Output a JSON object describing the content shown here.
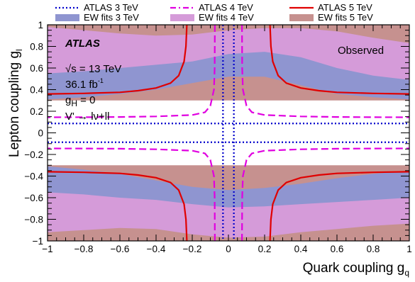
{
  "chart_data": {
    "type": "line",
    "xlabel": "Quark coupling g",
    "xlabel_sub": "q",
    "ylabel": "Lepton coupling g",
    "ylabel_sub": "l",
    "xlim": [
      -1,
      1
    ],
    "ylim": [
      -1,
      1
    ],
    "xticks": [
      -1,
      -0.8,
      -0.6,
      -0.4,
      -0.2,
      0,
      0.2,
      0.4,
      0.6,
      0.8,
      1
    ],
    "xtick_labels": [
      "−1",
      "−0.8",
      "−0.6",
      "−0.4",
      "−0.2",
      "0",
      "0.2",
      "0.4",
      "0.6",
      "0.8",
      "1"
    ],
    "yticks": [
      -1,
      -0.8,
      -0.6,
      -0.4,
      -0.2,
      0,
      0.2,
      0.4,
      0.6,
      0.8,
      1
    ],
    "ytick_labels": [
      "−1",
      "−0.8",
      "−0.6",
      "−0.4",
      "−0.2",
      "0",
      "0.2",
      "0.4",
      "0.6",
      "0.8",
      "1"
    ],
    "grid": false,
    "legend": {
      "placement": "top (above plot, 3 columns)",
      "entries": [
        {
          "label": "ATLAS 3 TeV",
          "kind": "line",
          "color": "#0000cc",
          "style": "dotted"
        },
        {
          "label": "ATLAS 4 TeV",
          "kind": "line",
          "color": "#e000e0",
          "style": "dashed"
        },
        {
          "label": "ATLAS 5 TeV",
          "kind": "line",
          "color": "#e00000",
          "style": "solid"
        },
        {
          "label": "EW fits 3 TeV",
          "kind": "band",
          "color": "#8f95d0"
        },
        {
          "label": "EW fits 4 TeV",
          "kind": "band",
          "color": "#d59bd9"
        },
        {
          "label": "EW fits 5 TeV",
          "kind": "band",
          "color": "#c6918f"
        }
      ]
    },
    "annotations": {
      "atlas": "ATLAS",
      "status": "Observed",
      "energy_prefix": "√s = 13 TeV",
      "lumi_value": "36.1 fb",
      "lumi_sup": "-1",
      "gh_prefix": "g",
      "gh_sub": "H",
      "gh_value": " = 0",
      "process": "V' → lν+ll"
    },
    "background_color": "#c6918f",
    "limit_curves": [
      {
        "name": "ATLAS 3 TeV",
        "color": "#0000cc",
        "style": "dotted",
        "x_vertical": 0.03,
        "y_horizontal": 0.087,
        "description": "four symmetric branches; excluded region outside the curves"
      },
      {
        "name": "ATLAS 4 TeV",
        "color": "#e000e0",
        "style": "dashed",
        "upper_right_branch": [
          [
            0.075,
            1.0
          ],
          [
            0.076,
            0.6
          ],
          [
            0.08,
            0.4
          ],
          [
            0.1,
            0.25
          ],
          [
            0.13,
            0.19
          ],
          [
            0.2,
            0.165
          ],
          [
            0.4,
            0.152
          ],
          [
            0.6,
            0.147
          ],
          [
            0.8,
            0.145
          ],
          [
            1.0,
            0.144
          ]
        ],
        "description": "four symmetric branches, mirror in x and y"
      },
      {
        "name": "ATLAS 5 TeV",
        "color": "#e00000",
        "style": "solid",
        "upper_right_branch": [
          [
            0.23,
            1.0
          ],
          [
            0.235,
            0.8
          ],
          [
            0.245,
            0.66
          ],
          [
            0.275,
            0.53
          ],
          [
            0.32,
            0.46
          ],
          [
            0.4,
            0.415
          ],
          [
            0.5,
            0.39
          ],
          [
            0.6,
            0.375
          ],
          [
            0.8,
            0.365
          ],
          [
            1.0,
            0.36
          ]
        ],
        "description": "four symmetric branches, mirror in x and y"
      }
    ],
    "ew_bands": [
      {
        "name": "EW fits 4 TeV",
        "color": "#d59bd9",
        "upper_lower": [
          [
            -1,
            0.51
          ],
          [
            -0.8,
            0.51
          ],
          [
            -0.6,
            0.53
          ],
          [
            -0.4,
            0.56
          ],
          [
            -0.2,
            0.6
          ],
          [
            0,
            0.66
          ],
          [
            0.2,
            0.68
          ],
          [
            0.4,
            0.55
          ],
          [
            0.6,
            0.42
          ],
          [
            0.8,
            0.36
          ],
          [
            1,
            0.34
          ]
        ],
        "upper_upper": [
          [
            -1,
            0.98
          ],
          [
            -0.8,
            0.95
          ],
          [
            -0.6,
            0.92
          ],
          [
            -0.4,
            0.9
          ],
          [
            -0.2,
            0.91
          ],
          [
            0,
            0.95
          ],
          [
            0.2,
            0.97
          ],
          [
            0.4,
            0.97
          ],
          [
            0.6,
            0.94
          ],
          [
            0.8,
            0.88
          ],
          [
            1,
            0.83
          ]
        ],
        "lower_lower": [
          [
            -1,
            -0.92
          ],
          [
            -0.8,
            -0.9
          ],
          [
            -0.6,
            -0.88
          ],
          [
            -0.4,
            -0.89
          ],
          [
            -0.2,
            -0.94
          ],
          [
            0,
            -0.97
          ],
          [
            0.2,
            -0.96
          ],
          [
            0.4,
            -0.92
          ],
          [
            0.6,
            -0.89
          ],
          [
            0.8,
            -0.86
          ],
          [
            1,
            -0.84
          ]
        ],
        "lower_upper": [
          [
            -1,
            -0.51
          ],
          [
            -0.8,
            -0.53
          ],
          [
            -0.6,
            -0.56
          ],
          [
            -0.4,
            -0.6
          ],
          [
            -0.2,
            -0.64
          ],
          [
            0,
            -0.66
          ],
          [
            0.2,
            -0.65
          ],
          [
            0.4,
            -0.62
          ],
          [
            0.6,
            -0.58
          ],
          [
            0.8,
            -0.55
          ],
          [
            1,
            -0.53
          ]
        ]
      },
      {
        "name": "EW fits 3 TeV",
        "color": "#8f95d0",
        "upper_lower": [
          [
            -1,
            0.31
          ],
          [
            -0.8,
            0.33
          ],
          [
            -0.6,
            0.36
          ],
          [
            -0.4,
            0.4
          ],
          [
            -0.2,
            0.46
          ],
          [
            0,
            0.52
          ],
          [
            0.2,
            0.52
          ],
          [
            0.4,
            0.44
          ],
          [
            0.6,
            0.36
          ],
          [
            0.8,
            0.33
          ],
          [
            1,
            0.31
          ]
        ],
        "upper_upper": [
          [
            -1,
            0.55
          ],
          [
            -0.8,
            0.57
          ],
          [
            -0.6,
            0.6
          ],
          [
            -0.4,
            0.63
          ],
          [
            -0.2,
            0.66
          ],
          [
            0,
            0.73
          ],
          [
            0.2,
            0.75
          ],
          [
            0.4,
            0.7
          ],
          [
            0.6,
            0.6
          ],
          [
            0.8,
            0.53
          ],
          [
            1,
            0.49
          ]
        ],
        "lower_lower": [
          [
            -1,
            -0.55
          ],
          [
            -0.8,
            -0.57
          ],
          [
            -0.6,
            -0.6
          ],
          [
            -0.4,
            -0.62
          ],
          [
            -0.2,
            -0.66
          ],
          [
            0,
            -0.69
          ],
          [
            0.2,
            -0.68
          ],
          [
            0.4,
            -0.66
          ],
          [
            0.6,
            -0.64
          ],
          [
            0.8,
            -0.62
          ],
          [
            1,
            -0.6
          ]
        ],
        "lower_upper": [
          [
            -1,
            -0.31
          ],
          [
            -0.8,
            -0.34
          ],
          [
            -0.6,
            -0.38
          ],
          [
            -0.4,
            -0.44
          ],
          [
            -0.2,
            -0.5
          ],
          [
            0,
            -0.53
          ],
          [
            0.2,
            -0.51
          ],
          [
            0.4,
            -0.47
          ],
          [
            0.6,
            -0.42
          ],
          [
            0.8,
            -0.38
          ],
          [
            1,
            -0.35
          ]
        ]
      }
    ]
  }
}
